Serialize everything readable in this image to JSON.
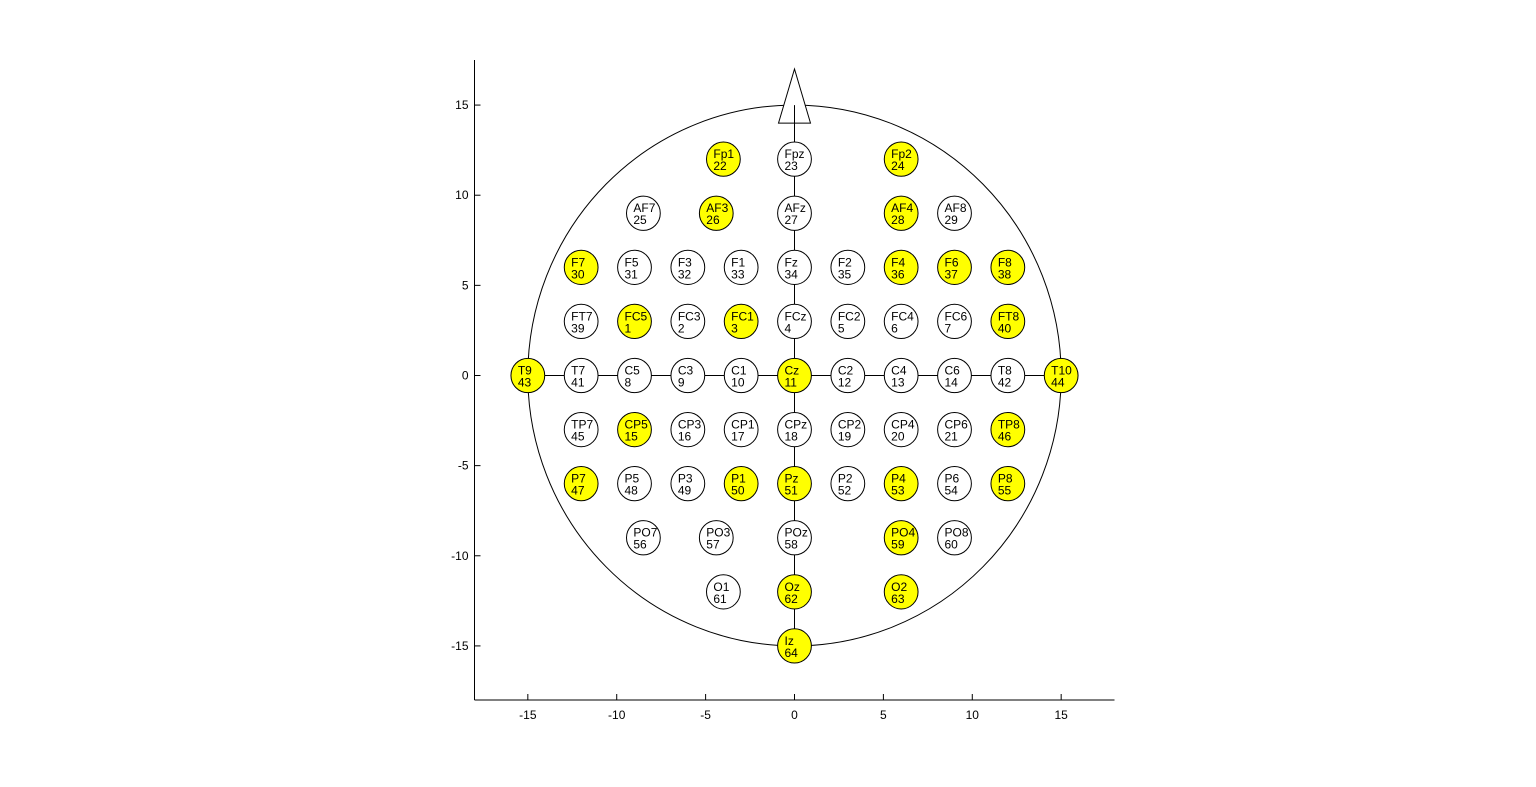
{
  "chart_data": {
    "type": "scatter",
    "title": "",
    "xlabel": "",
    "ylabel": "",
    "xlim": [
      -18,
      18
    ],
    "ylim": [
      -18,
      17.5
    ],
    "xticks": [
      -15,
      -10,
      -5,
      0,
      5,
      10,
      15
    ],
    "yticks": [
      15,
      10,
      5,
      0,
      -5,
      -10,
      -15
    ],
    "grid": false,
    "head": {
      "radius": 15,
      "nose_tip": [
        0,
        17
      ],
      "nose_base": [
        -0.9,
        1.0
      ]
    },
    "electrode_radius": 0.95,
    "colors": {
      "highlight": "#ffff00",
      "normal": "#ffffff",
      "edge": "#000000",
      "axis": "#000000"
    },
    "electrodes": [
      {
        "name": "Fp1",
        "id": 22,
        "x": -4,
        "y": 12,
        "highlight": true
      },
      {
        "name": "Fpz",
        "id": 23,
        "x": 0,
        "y": 12,
        "highlight": false
      },
      {
        "name": "Fp2",
        "id": 24,
        "x": 6,
        "y": 12,
        "highlight": true
      },
      {
        "name": "AF7",
        "id": 25,
        "x": -8.5,
        "y": 9,
        "highlight": false
      },
      {
        "name": "AF3",
        "id": 26,
        "x": -4.4,
        "y": 9,
        "highlight": true
      },
      {
        "name": "AFz",
        "id": 27,
        "x": 0,
        "y": 9,
        "highlight": false
      },
      {
        "name": "AF4",
        "id": 28,
        "x": 6,
        "y": 9,
        "highlight": true
      },
      {
        "name": "AF8",
        "id": 29,
        "x": 9,
        "y": 9,
        "highlight": false
      },
      {
        "name": "F7",
        "id": 30,
        "x": -12,
        "y": 6,
        "highlight": true
      },
      {
        "name": "F5",
        "id": 31,
        "x": -9,
        "y": 6,
        "highlight": false
      },
      {
        "name": "F3",
        "id": 32,
        "x": -6,
        "y": 6,
        "highlight": false
      },
      {
        "name": "F1",
        "id": 33,
        "x": -3,
        "y": 6,
        "highlight": false
      },
      {
        "name": "Fz",
        "id": 34,
        "x": 0,
        "y": 6,
        "highlight": false
      },
      {
        "name": "F2",
        "id": 35,
        "x": 3,
        "y": 6,
        "highlight": false
      },
      {
        "name": "F4",
        "id": 36,
        "x": 6,
        "y": 6,
        "highlight": true
      },
      {
        "name": "F6",
        "id": 37,
        "x": 9,
        "y": 6,
        "highlight": true
      },
      {
        "name": "F8",
        "id": 38,
        "x": 12,
        "y": 6,
        "highlight": true
      },
      {
        "name": "FT7",
        "id": 39,
        "x": -12,
        "y": 3,
        "highlight": false
      },
      {
        "name": "FC5",
        "id": 1,
        "x": -9,
        "y": 3,
        "highlight": true
      },
      {
        "name": "FC3",
        "id": 2,
        "x": -6,
        "y": 3,
        "highlight": false
      },
      {
        "name": "FC1",
        "id": 3,
        "x": -3,
        "y": 3,
        "highlight": true
      },
      {
        "name": "FCz",
        "id": 4,
        "x": 0,
        "y": 3,
        "highlight": false
      },
      {
        "name": "FC2",
        "id": 5,
        "x": 3,
        "y": 3,
        "highlight": false
      },
      {
        "name": "FC4",
        "id": 6,
        "x": 6,
        "y": 3,
        "highlight": false
      },
      {
        "name": "FC6",
        "id": 7,
        "x": 9,
        "y": 3,
        "highlight": false
      },
      {
        "name": "FT8",
        "id": 40,
        "x": 12,
        "y": 3,
        "highlight": true
      },
      {
        "name": "T9",
        "id": 43,
        "x": -15,
        "y": 0,
        "highlight": true
      },
      {
        "name": "T7",
        "id": 41,
        "x": -12,
        "y": 0,
        "highlight": false
      },
      {
        "name": "C5",
        "id": 8,
        "x": -9,
        "y": 0,
        "highlight": false
      },
      {
        "name": "C3",
        "id": 9,
        "x": -6,
        "y": 0,
        "highlight": false
      },
      {
        "name": "C1",
        "id": 10,
        "x": -3,
        "y": 0,
        "highlight": false
      },
      {
        "name": "Cz",
        "id": 11,
        "x": 0,
        "y": 0,
        "highlight": true
      },
      {
        "name": "C2",
        "id": 12,
        "x": 3,
        "y": 0,
        "highlight": false
      },
      {
        "name": "C4",
        "id": 13,
        "x": 6,
        "y": 0,
        "highlight": false
      },
      {
        "name": "C6",
        "id": 14,
        "x": 9,
        "y": 0,
        "highlight": false
      },
      {
        "name": "T8",
        "id": 42,
        "x": 12,
        "y": 0,
        "highlight": false
      },
      {
        "name": "T10",
        "id": 44,
        "x": 15,
        "y": 0,
        "highlight": true
      },
      {
        "name": "TP7",
        "id": 45,
        "x": -12,
        "y": -3,
        "highlight": false
      },
      {
        "name": "CP5",
        "id": 15,
        "x": -9,
        "y": -3,
        "highlight": true
      },
      {
        "name": "CP3",
        "id": 16,
        "x": -6,
        "y": -3,
        "highlight": false
      },
      {
        "name": "CP1",
        "id": 17,
        "x": -3,
        "y": -3,
        "highlight": false
      },
      {
        "name": "CPz",
        "id": 18,
        "x": 0,
        "y": -3,
        "highlight": false
      },
      {
        "name": "CP2",
        "id": 19,
        "x": 3,
        "y": -3,
        "highlight": false
      },
      {
        "name": "CP4",
        "id": 20,
        "x": 6,
        "y": -3,
        "highlight": false
      },
      {
        "name": "CP6",
        "id": 21,
        "x": 9,
        "y": -3,
        "highlight": false
      },
      {
        "name": "TP8",
        "id": 46,
        "x": 12,
        "y": -3,
        "highlight": true
      },
      {
        "name": "P7",
        "id": 47,
        "x": -12,
        "y": -6,
        "highlight": true
      },
      {
        "name": "P5",
        "id": 48,
        "x": -9,
        "y": -6,
        "highlight": false
      },
      {
        "name": "P3",
        "id": 49,
        "x": -6,
        "y": -6,
        "highlight": false
      },
      {
        "name": "P1",
        "id": 50,
        "x": -3,
        "y": -6,
        "highlight": true
      },
      {
        "name": "Pz",
        "id": 51,
        "x": 0,
        "y": -6,
        "highlight": true
      },
      {
        "name": "P2",
        "id": 52,
        "x": 3,
        "y": -6,
        "highlight": false
      },
      {
        "name": "P4",
        "id": 53,
        "x": 6,
        "y": -6,
        "highlight": true
      },
      {
        "name": "P6",
        "id": 54,
        "x": 9,
        "y": -6,
        "highlight": false
      },
      {
        "name": "P8",
        "id": 55,
        "x": 12,
        "y": -6,
        "highlight": true
      },
      {
        "name": "PO7",
        "id": 56,
        "x": -8.5,
        "y": -9,
        "highlight": false
      },
      {
        "name": "PO3",
        "id": 57,
        "x": -4.4,
        "y": -9,
        "highlight": false
      },
      {
        "name": "POz",
        "id": 58,
        "x": 0,
        "y": -9,
        "highlight": false
      },
      {
        "name": "PO4",
        "id": 59,
        "x": 6,
        "y": -9,
        "highlight": true
      },
      {
        "name": "PO8",
        "id": 60,
        "x": 9,
        "y": -9,
        "highlight": false
      },
      {
        "name": "O1",
        "id": 61,
        "x": -4,
        "y": -12,
        "highlight": false
      },
      {
        "name": "Oz",
        "id": 62,
        "x": 0,
        "y": -12,
        "highlight": true
      },
      {
        "name": "O2",
        "id": 63,
        "x": 6,
        "y": -12,
        "highlight": true
      },
      {
        "name": "Iz",
        "id": 64,
        "x": 0,
        "y": -15,
        "highlight": true
      }
    ]
  }
}
